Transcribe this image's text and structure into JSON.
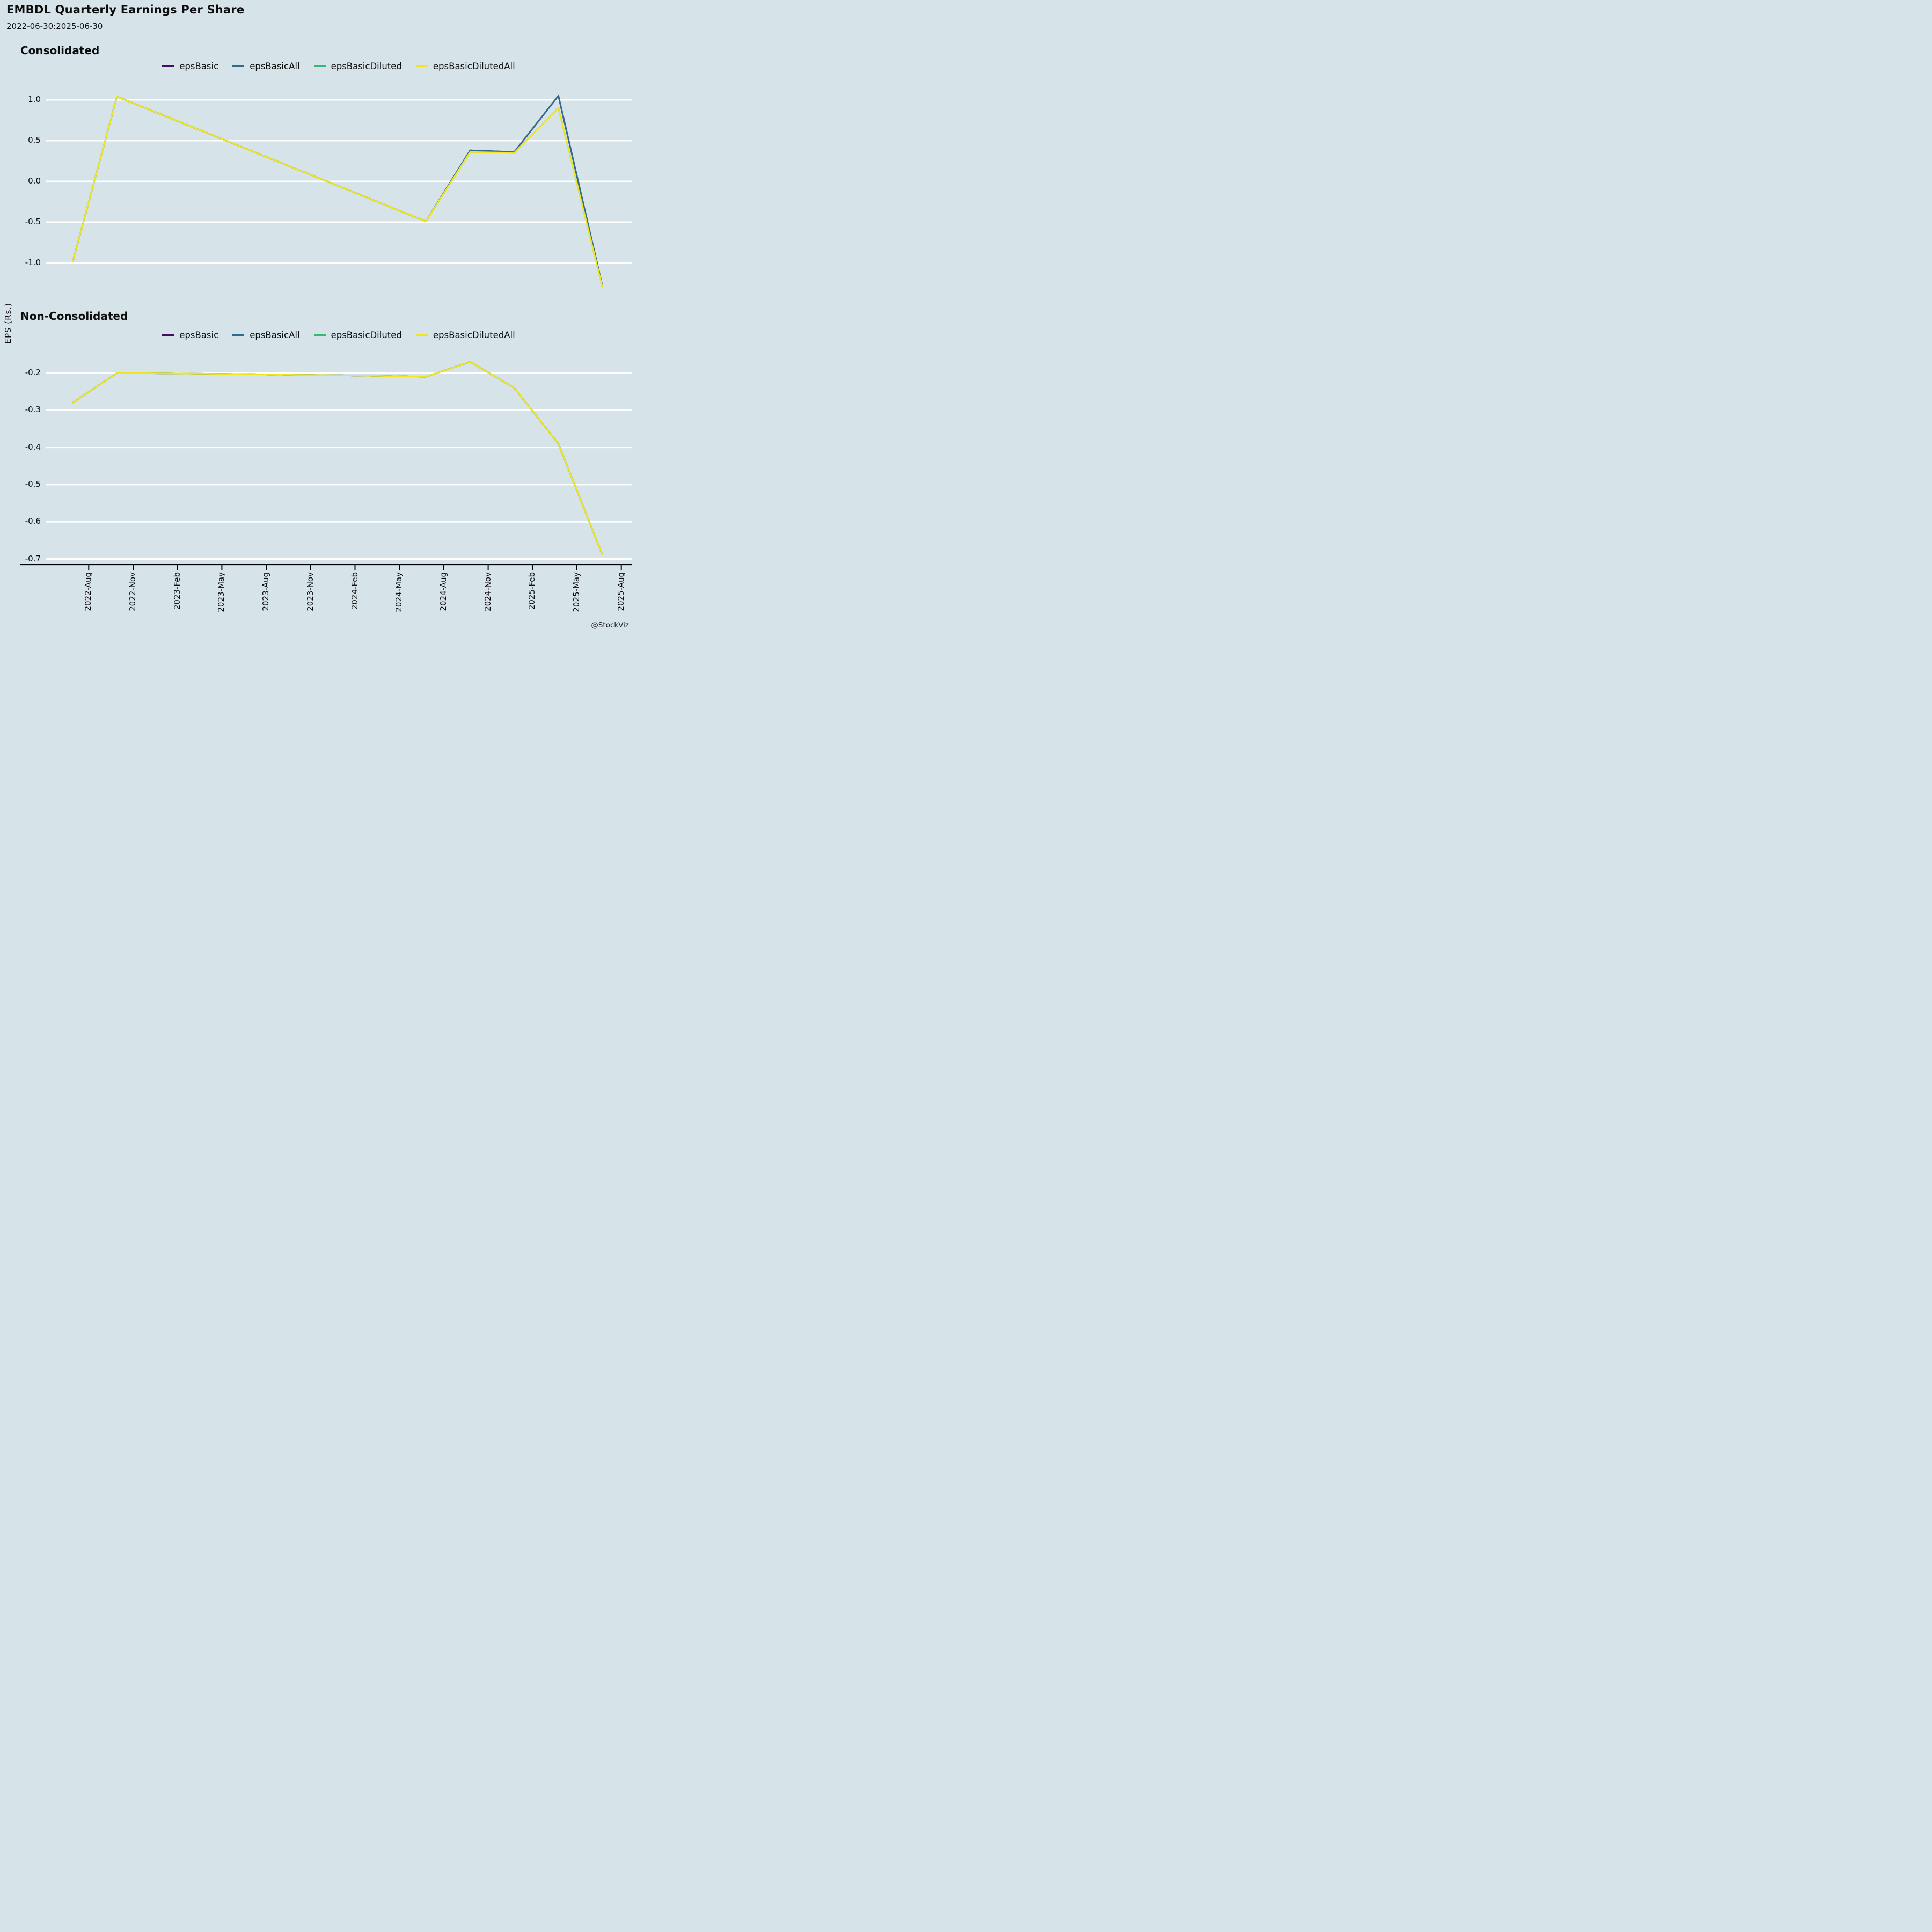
{
  "title": "EMBDL Quarterly Earnings Per Share",
  "subtitle": "2022-06-30:2025-06-30",
  "ylabel": "EPS (Rs.)",
  "watermark": "@StockViz",
  "colors": {
    "epsBasic": "#440f63",
    "epsBasicAll": "#2e6d8e",
    "epsBasicDiluted": "#35b779",
    "epsBasicDilutedAll": "#f2e41e",
    "background": "#d6e3e9",
    "gridline": "#ffffff",
    "axis": "#000000"
  },
  "x_axis": {
    "tick_labels": [
      "2022-Aug",
      "2022-Nov",
      "2023-Feb",
      "2023-May",
      "2023-Aug",
      "2023-Nov",
      "2024-Feb",
      "2024-May",
      "2024-Aug",
      "2024-Nov",
      "2025-Feb",
      "2025-May",
      "2025-Aug"
    ]
  },
  "chart_data": [
    {
      "type": "line",
      "id": "consolidated",
      "title": "Consolidated",
      "ylabel": "EPS (Rs.)",
      "grid": true,
      "legend_position": "top-center",
      "ylim": [
        -1.45,
        1.2
      ],
      "ytick_labels": [
        "1.0",
        "0.5",
        "0.0",
        "-0.5",
        "-1.0"
      ],
      "ytick_values": [
        1.0,
        0.5,
        0.0,
        -0.5,
        -1.0
      ],
      "x_dates": [
        "2022-06-30",
        "2022-09-30",
        "2024-06-30",
        "2024-09-30",
        "2024-12-31",
        "2025-03-31",
        "2025-06-30"
      ],
      "series": [
        {
          "name": "epsBasic",
          "values": [
            -0.98,
            1.04,
            -0.49,
            0.38,
            0.36,
            1.05,
            -1.29
          ]
        },
        {
          "name": "epsBasicAll",
          "values": [
            -0.98,
            1.04,
            -0.49,
            0.38,
            0.36,
            1.05,
            -1.29
          ]
        },
        {
          "name": "epsBasicDiluted",
          "values": [
            -0.98,
            1.04,
            -0.49,
            0.36,
            0.35,
            0.9,
            -1.3
          ]
        },
        {
          "name": "epsBasicDilutedAll",
          "values": [
            -0.98,
            1.04,
            -0.49,
            0.36,
            0.35,
            0.9,
            -1.3
          ]
        }
      ]
    },
    {
      "type": "line",
      "id": "non_consolidated",
      "title": "Non-Consolidated",
      "ylabel": "EPS (Rs.)",
      "grid": true,
      "legend_position": "top-center",
      "ylim": [
        -0.72,
        -0.15
      ],
      "ytick_labels": [
        "-0.2",
        "-0.3",
        "-0.4",
        "-0.5",
        "-0.6",
        "-0.7"
      ],
      "ytick_values": [
        -0.2,
        -0.3,
        -0.4,
        -0.5,
        -0.6,
        -0.7
      ],
      "x_dates": [
        "2022-06-30",
        "2022-09-30",
        "2022-12-31",
        "2023-03-31",
        "2023-06-30",
        "2023-09-30",
        "2023-12-31",
        "2024-03-31",
        "2024-06-30",
        "2024-09-30",
        "2024-12-31",
        "2025-03-31",
        "2025-06-30"
      ],
      "series": [
        {
          "name": "epsBasic",
          "values": [
            -0.28,
            -0.2,
            -0.201,
            -0.202,
            -0.203,
            -0.205,
            -0.206,
            -0.208,
            -0.21,
            -0.17,
            -0.24,
            -0.39,
            -0.69
          ]
        },
        {
          "name": "epsBasicAll",
          "values": [
            -0.28,
            -0.2,
            -0.201,
            -0.202,
            -0.203,
            -0.205,
            -0.206,
            -0.208,
            -0.21,
            -0.17,
            -0.24,
            -0.39,
            -0.69
          ]
        },
        {
          "name": "epsBasicDiluted",
          "values": [
            -0.28,
            -0.2,
            -0.201,
            -0.202,
            -0.203,
            -0.205,
            -0.206,
            -0.208,
            -0.21,
            -0.17,
            -0.24,
            -0.39,
            -0.69
          ]
        },
        {
          "name": "epsBasicDilutedAll",
          "values": [
            -0.28,
            -0.2,
            -0.201,
            -0.202,
            -0.203,
            -0.205,
            -0.206,
            -0.208,
            -0.21,
            -0.17,
            -0.24,
            -0.39,
            -0.69
          ]
        }
      ]
    }
  ]
}
